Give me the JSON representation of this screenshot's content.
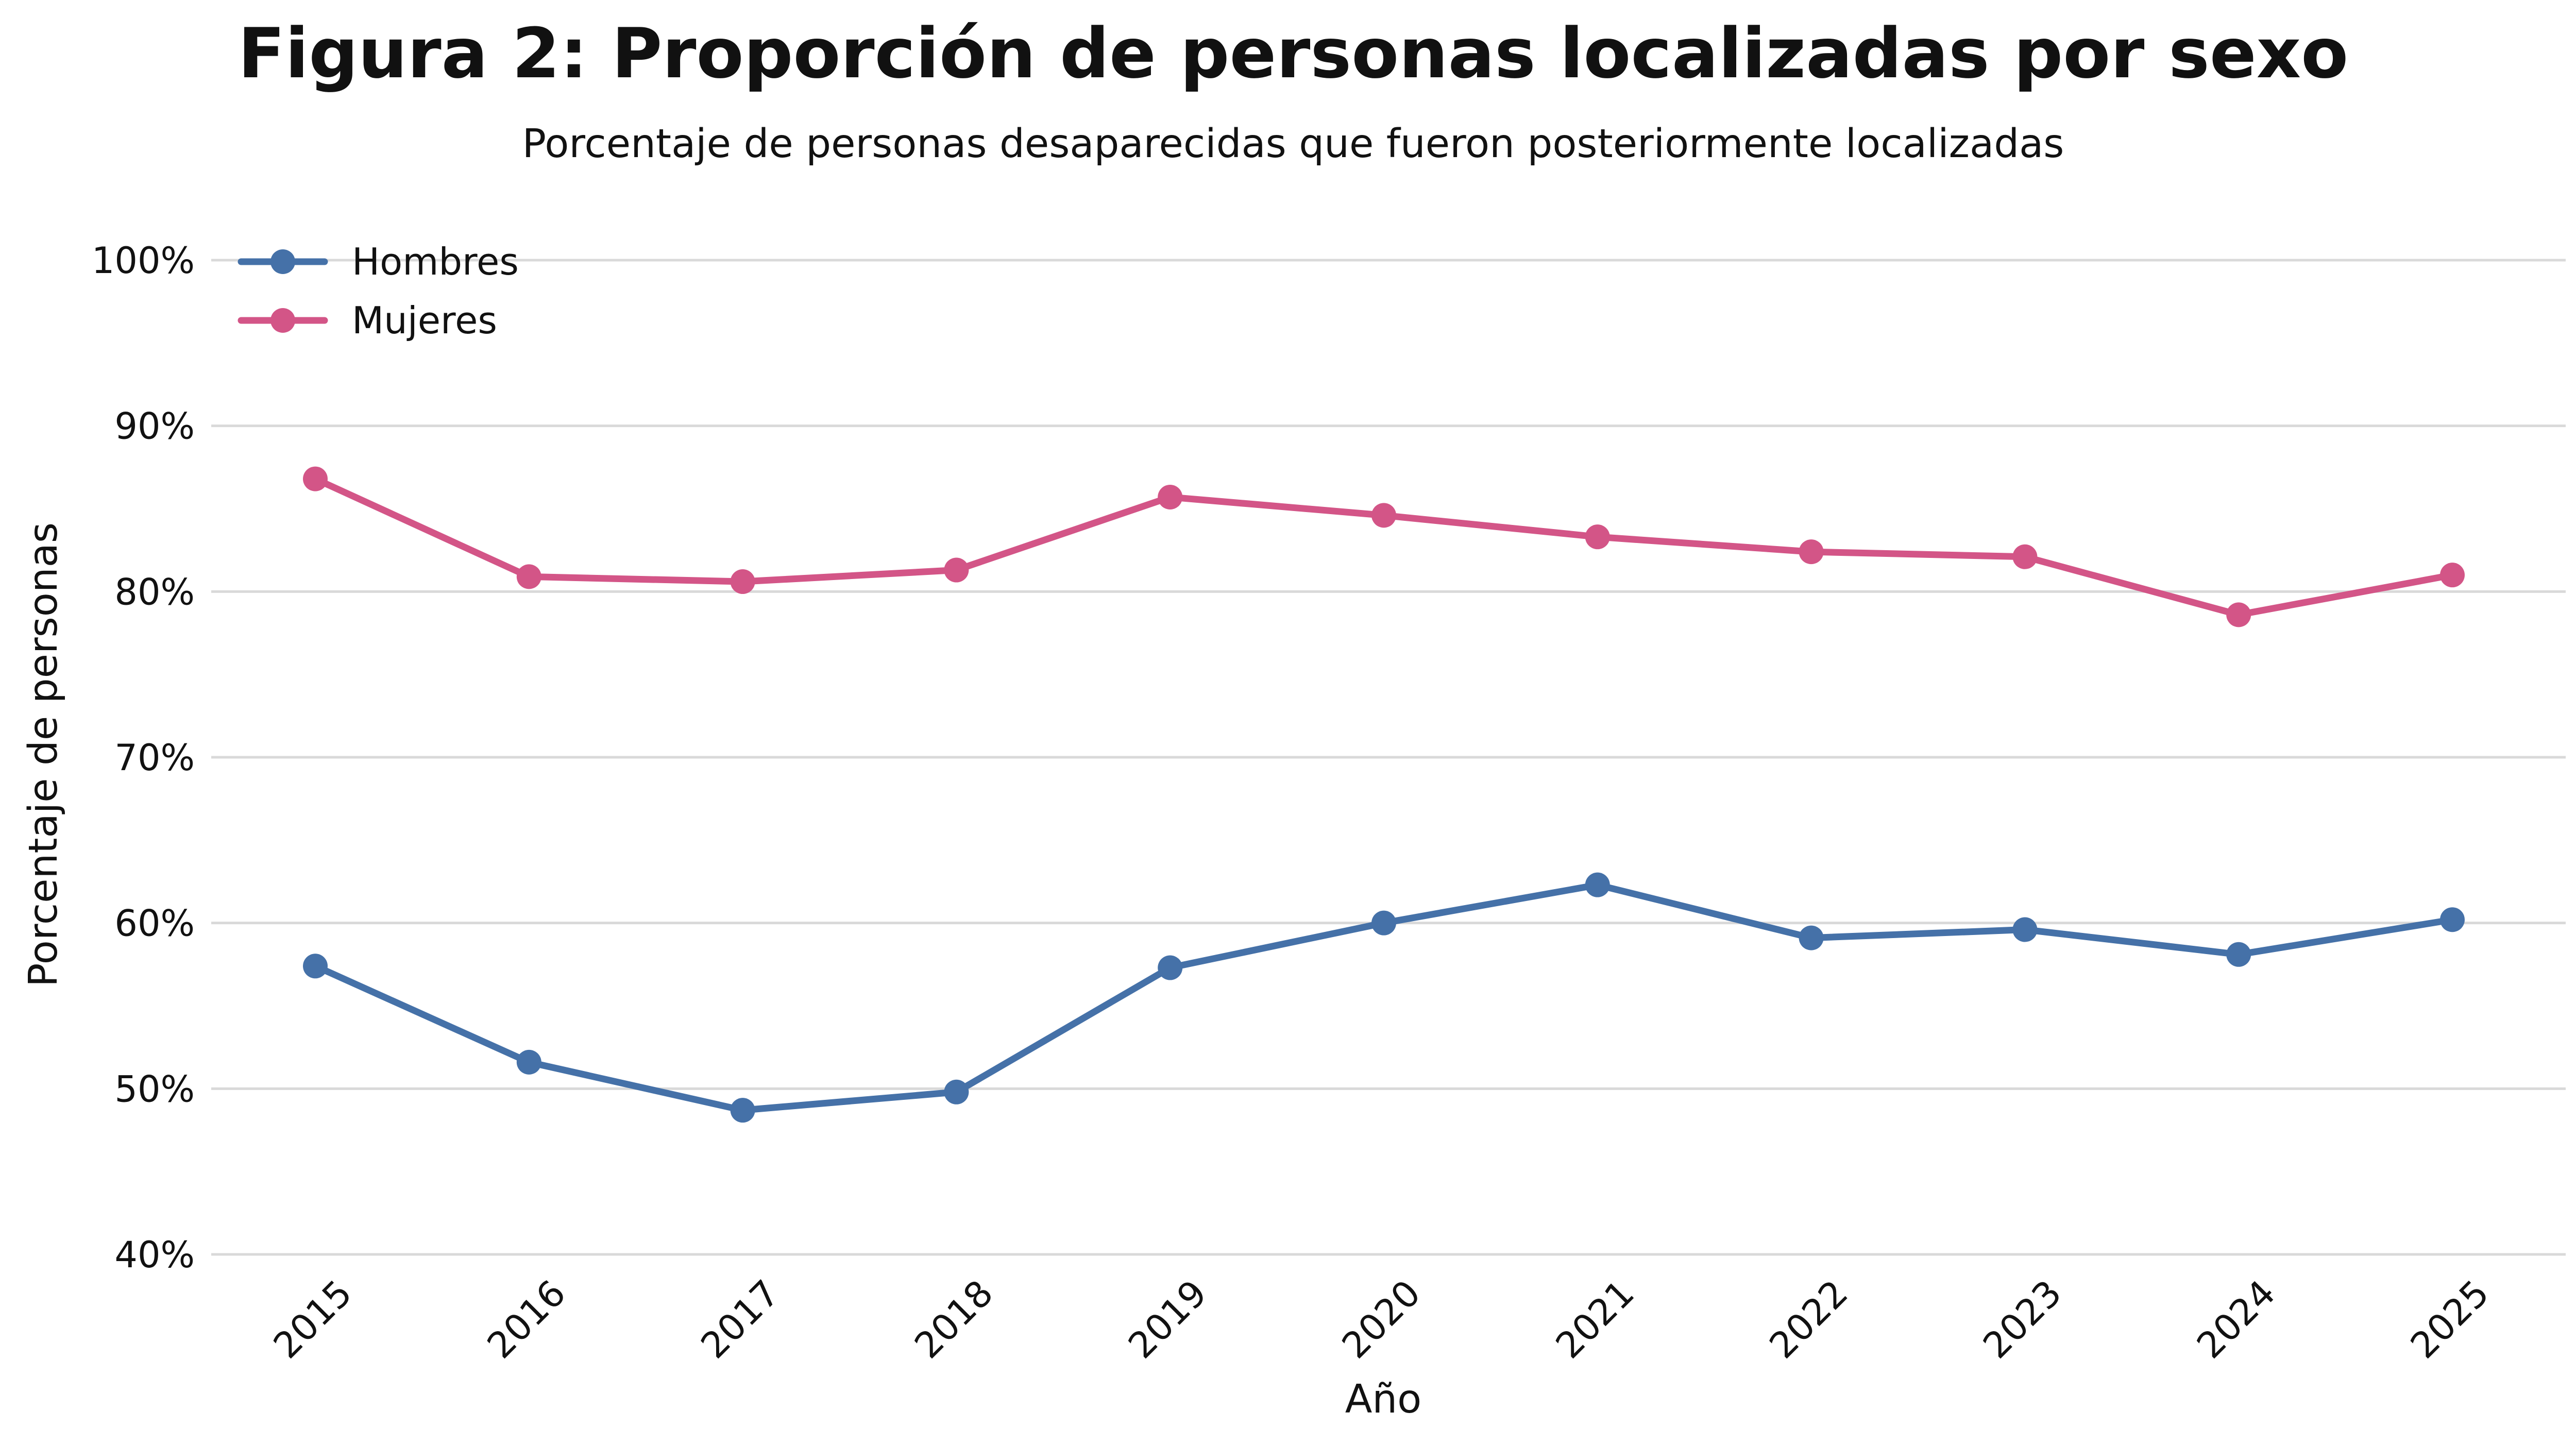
{
  "chart_data": {
    "type": "line",
    "title": "Figura 2: Proporción de personas localizadas por sexo",
    "subtitle": "Porcentaje de personas desaparecidas que fueron posteriormente localizadas",
    "xlabel": "Año",
    "ylabel": "Porcentaje de personas",
    "x": [
      "2015",
      "2016",
      "2017",
      "2018",
      "2019",
      "2020",
      "2021",
      "2022",
      "2023",
      "2024",
      "2025"
    ],
    "yticks": [
      "40%",
      "50%",
      "60%",
      "70%",
      "80%",
      "90%",
      "100%"
    ],
    "ylim": [
      40,
      100
    ],
    "grid": true,
    "legend_position": "top-left",
    "series": [
      {
        "name": "Hombres",
        "color": "#4571a8",
        "values": [
          57.4,
          51.6,
          48.7,
          49.8,
          57.3,
          60.0,
          62.3,
          59.1,
          59.6,
          58.1,
          60.2
        ]
      },
      {
        "name": "Mujeres",
        "color": "#d35587",
        "values": [
          86.8,
          80.9,
          80.6,
          81.3,
          85.7,
          84.6,
          83.3,
          82.4,
          82.1,
          78.6,
          81.0
        ]
      }
    ]
  }
}
